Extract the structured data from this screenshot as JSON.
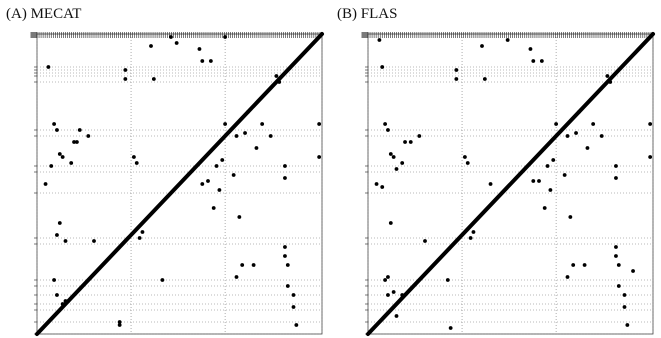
{
  "chart_data": [
    {
      "type": "scatter",
      "title": "(A) MECAT",
      "xlabel": "",
      "ylabel": "",
      "xlim": [
        0,
        100
      ],
      "ylim": [
        0,
        100
      ],
      "grid": "dotted",
      "diagonal": {
        "from": [
          0,
          0
        ],
        "to": [
          100,
          100
        ]
      },
      "vertical_gridlines": [
        0,
        33,
        66,
        100
      ],
      "horizontal_gridlines": [
        0,
        4,
        8,
        10,
        13,
        16,
        18,
        30,
        32,
        47,
        54,
        56,
        66,
        68,
        84,
        86,
        87,
        88,
        89
      ],
      "points": [
        {
          "x": 3,
          "y": 50
        },
        {
          "x": 4,
          "y": 89
        },
        {
          "x": 5,
          "y": 56
        },
        {
          "x": 6,
          "y": 70
        },
        {
          "x": 7,
          "y": 68
        },
        {
          "x": 8,
          "y": 60
        },
        {
          "x": 8,
          "y": 37
        },
        {
          "x": 9,
          "y": 59
        },
        {
          "x": 10,
          "y": 31
        },
        {
          "x": 7,
          "y": 33
        },
        {
          "x": 6,
          "y": 18
        },
        {
          "x": 7,
          "y": 13
        },
        {
          "x": 9,
          "y": 10
        },
        {
          "x": 10,
          "y": 11
        },
        {
          "x": 11,
          "y": 11
        },
        {
          "x": 12,
          "y": 57
        },
        {
          "x": 13,
          "y": 64
        },
        {
          "x": 14,
          "y": 64
        },
        {
          "x": 15,
          "y": 68
        },
        {
          "x": 18,
          "y": 66
        },
        {
          "x": 20,
          "y": 31
        },
        {
          "x": 31,
          "y": 88
        },
        {
          "x": 31,
          "y": 85
        },
        {
          "x": 34,
          "y": 59
        },
        {
          "x": 35,
          "y": 57
        },
        {
          "x": 36,
          "y": 32
        },
        {
          "x": 37,
          "y": 34
        },
        {
          "x": 29,
          "y": 3
        },
        {
          "x": 29,
          "y": 4
        },
        {
          "x": 40,
          "y": 96
        },
        {
          "x": 41,
          "y": 85
        },
        {
          "x": 44,
          "y": 18
        },
        {
          "x": 49,
          "y": 97
        },
        {
          "x": 57,
          "y": 95
        },
        {
          "x": 58,
          "y": 91
        },
        {
          "x": 61,
          "y": 91
        },
        {
          "x": 58,
          "y": 50
        },
        {
          "x": 60,
          "y": 51
        },
        {
          "x": 63,
          "y": 56
        },
        {
          "x": 65,
          "y": 58
        },
        {
          "x": 66,
          "y": 70
        },
        {
          "x": 62,
          "y": 42
        },
        {
          "x": 64,
          "y": 48
        },
        {
          "x": 69,
          "y": 53
        },
        {
          "x": 70,
          "y": 66
        },
        {
          "x": 71,
          "y": 39
        },
        {
          "x": 73,
          "y": 67
        },
        {
          "x": 74,
          "y": 74
        },
        {
          "x": 72,
          "y": 23
        },
        {
          "x": 70,
          "y": 19
        },
        {
          "x": 76,
          "y": 23
        },
        {
          "x": 79,
          "y": 70
        },
        {
          "x": 77,
          "y": 62
        },
        {
          "x": 82,
          "y": 66
        },
        {
          "x": 87,
          "y": 56
        },
        {
          "x": 87,
          "y": 52
        },
        {
          "x": 87,
          "y": 29
        },
        {
          "x": 87,
          "y": 26
        },
        {
          "x": 88,
          "y": 23
        },
        {
          "x": 88,
          "y": 16
        },
        {
          "x": 90,
          "y": 13
        },
        {
          "x": 90,
          "y": 9
        },
        {
          "x": 91,
          "y": 3
        },
        {
          "x": 99,
          "y": 70
        },
        {
          "x": 99,
          "y": 59
        },
        {
          "x": 84,
          "y": 86
        },
        {
          "x": 85,
          "y": 84
        },
        {
          "x": 47,
          "y": 99
        },
        {
          "x": 66,
          "y": 99
        }
      ]
    },
    {
      "type": "scatter",
      "title": "(B) FLAS",
      "xlabel": "",
      "ylabel": "",
      "xlim": [
        0,
        100
      ],
      "ylim": [
        0,
        100
      ],
      "grid": "dotted",
      "diagonal": {
        "from": [
          0,
          0
        ],
        "to": [
          100,
          100
        ]
      },
      "vertical_gridlines": [
        0,
        33,
        66,
        100
      ],
      "horizontal_gridlines": [
        0,
        4,
        8,
        10,
        13,
        16,
        18,
        30,
        32,
        47,
        54,
        56,
        66,
        68,
        84,
        86,
        87,
        88,
        89
      ],
      "points": [
        {
          "x": 4,
          "y": 98
        },
        {
          "x": 5,
          "y": 89
        },
        {
          "x": 6,
          "y": 70
        },
        {
          "x": 7,
          "y": 68
        },
        {
          "x": 8,
          "y": 60
        },
        {
          "x": 8,
          "y": 37
        },
        {
          "x": 9,
          "y": 59
        },
        {
          "x": 10,
          "y": 55
        },
        {
          "x": 12,
          "y": 57
        },
        {
          "x": 13,
          "y": 64
        },
        {
          "x": 15,
          "y": 64
        },
        {
          "x": 18,
          "y": 66
        },
        {
          "x": 3,
          "y": 50
        },
        {
          "x": 5,
          "y": 49
        },
        {
          "x": 6,
          "y": 18
        },
        {
          "x": 7,
          "y": 19
        },
        {
          "x": 7,
          "y": 13
        },
        {
          "x": 9,
          "y": 14
        },
        {
          "x": 10,
          "y": 6
        },
        {
          "x": 12,
          "y": 13
        },
        {
          "x": 20,
          "y": 31
        },
        {
          "x": 31,
          "y": 88
        },
        {
          "x": 31,
          "y": 85
        },
        {
          "x": 34,
          "y": 59
        },
        {
          "x": 35,
          "y": 57
        },
        {
          "x": 36,
          "y": 32
        },
        {
          "x": 37,
          "y": 34
        },
        {
          "x": 28,
          "y": 18
        },
        {
          "x": 29,
          "y": 2
        },
        {
          "x": 40,
          "y": 96
        },
        {
          "x": 41,
          "y": 85
        },
        {
          "x": 43,
          "y": 50
        },
        {
          "x": 49,
          "y": 98
        },
        {
          "x": 57,
          "y": 95
        },
        {
          "x": 58,
          "y": 91
        },
        {
          "x": 61,
          "y": 91
        },
        {
          "x": 58,
          "y": 51
        },
        {
          "x": 60,
          "y": 51
        },
        {
          "x": 63,
          "y": 56
        },
        {
          "x": 65,
          "y": 58
        },
        {
          "x": 66,
          "y": 70
        },
        {
          "x": 62,
          "y": 42
        },
        {
          "x": 64,
          "y": 48
        },
        {
          "x": 69,
          "y": 53
        },
        {
          "x": 70,
          "y": 66
        },
        {
          "x": 71,
          "y": 39
        },
        {
          "x": 73,
          "y": 67
        },
        {
          "x": 74,
          "y": 74
        },
        {
          "x": 72,
          "y": 23
        },
        {
          "x": 70,
          "y": 19
        },
        {
          "x": 76,
          "y": 23
        },
        {
          "x": 79,
          "y": 70
        },
        {
          "x": 77,
          "y": 62
        },
        {
          "x": 82,
          "y": 66
        },
        {
          "x": 87,
          "y": 56
        },
        {
          "x": 87,
          "y": 52
        },
        {
          "x": 87,
          "y": 29
        },
        {
          "x": 87,
          "y": 26
        },
        {
          "x": 88,
          "y": 23
        },
        {
          "x": 88,
          "y": 16
        },
        {
          "x": 90,
          "y": 13
        },
        {
          "x": 90,
          "y": 9
        },
        {
          "x": 91,
          "y": 3
        },
        {
          "x": 99,
          "y": 70
        },
        {
          "x": 99,
          "y": 59
        },
        {
          "x": 84,
          "y": 86
        },
        {
          "x": 85,
          "y": 84
        },
        {
          "x": 93,
          "y": 21
        }
      ]
    }
  ]
}
